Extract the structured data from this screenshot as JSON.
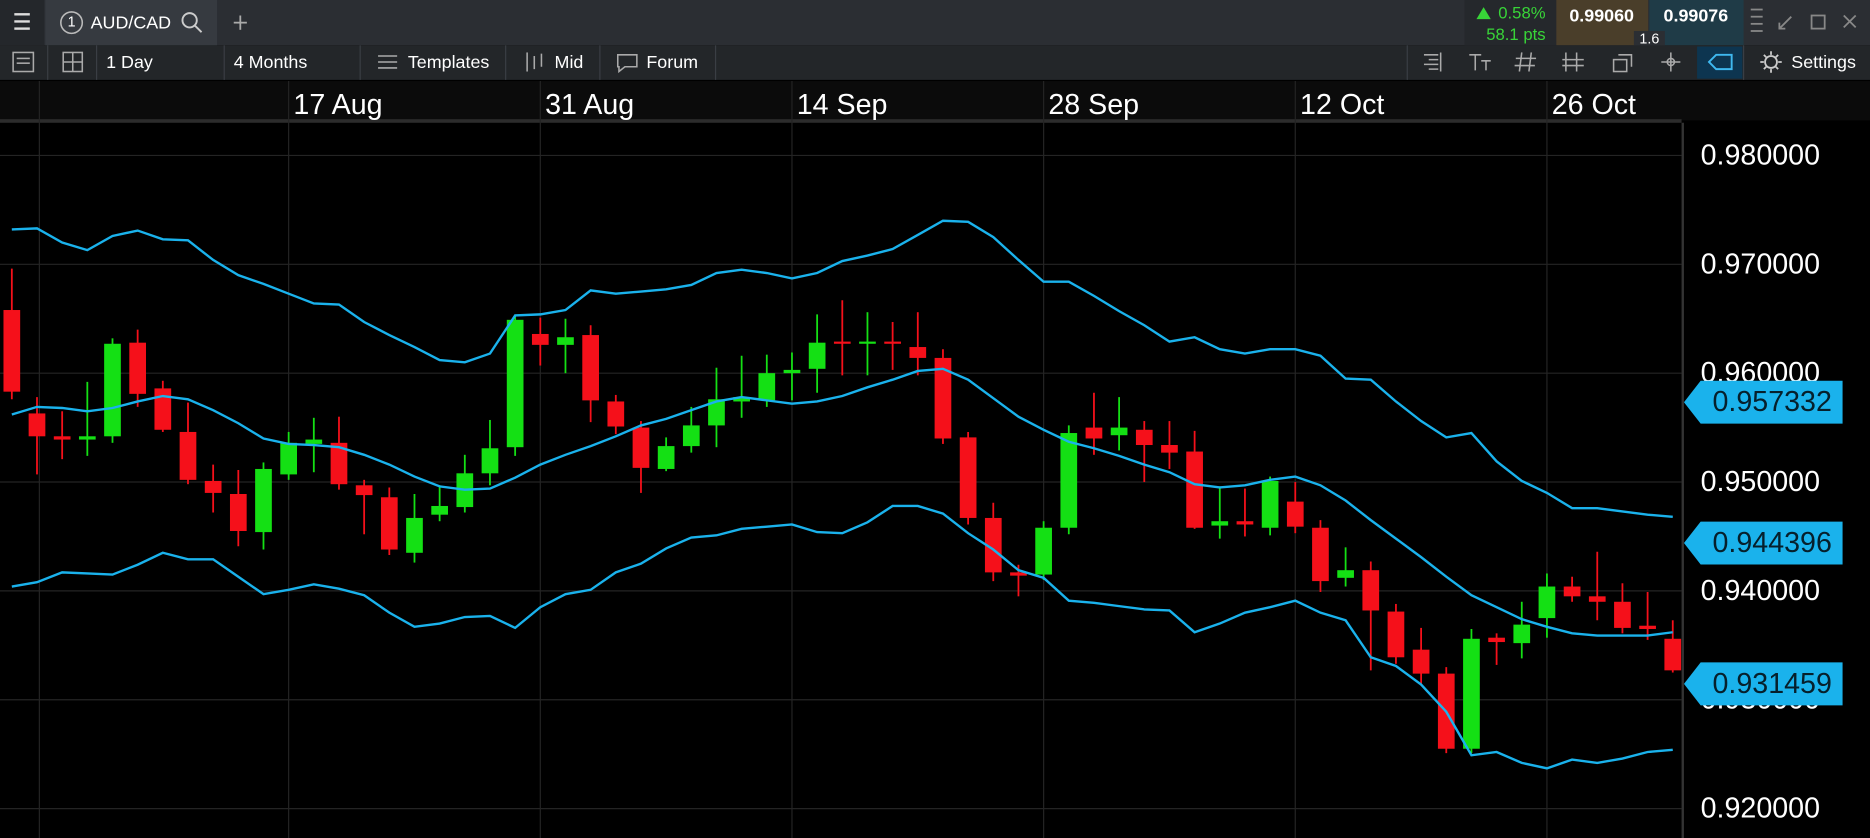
{
  "toolbar": {
    "slot": "1",
    "symbol": "AUD/CAD",
    "change": "0.58%",
    "change_pts": "58.1 pts",
    "bid": "0.99060",
    "ask": "0.99076",
    "spread": "1.6",
    "menu": [
      "1 Day",
      "4 Months",
      "Templates",
      "Mid",
      "Forum"
    ],
    "settings": "Settings"
  },
  "chart_data": {
    "type": "candlestick",
    "up_color": "#14e014",
    "down_color": "#f5101a",
    "xlim": [
      -0.47,
      66.35
    ],
    "xticks": [
      {
        "value": 11,
        "label": "17 Aug"
      },
      {
        "value": 21,
        "label": "31 Aug"
      },
      {
        "value": 31,
        "label": "14 Sep"
      },
      {
        "value": 41,
        "label": "28 Sep"
      },
      {
        "value": 51,
        "label": "12 Oct"
      },
      {
        "value": 61,
        "label": "26 Oct"
      }
    ],
    "ylim": [
      0.9173,
      0.983
    ],
    "yticks": [
      {
        "value": 0.98,
        "label": "0.980000"
      },
      {
        "value": 0.97,
        "label": "0.970000"
      },
      {
        "value": 0.96,
        "label": "0.960000"
      },
      {
        "value": 0.95,
        "label": "0.950000"
      },
      {
        "value": 0.94,
        "label": "0.940000"
      },
      {
        "value": 0.93,
        "label": "0.930000"
      },
      {
        "value": 0.92,
        "label": "0.920000"
      }
    ],
    "grid": true,
    "open": [
      0.9658,
      0.9563,
      0.9542,
      0.9539,
      0.9542,
      0.9628,
      0.9586,
      0.9546,
      0.9501,
      0.9489,
      0.9454,
      0.9507,
      0.9535,
      0.9536,
      0.9497,
      0.9486,
      0.9435,
      0.947,
      0.9477,
      0.9508,
      0.9532,
      0.9636,
      0.9626,
      0.9635,
      0.9574,
      0.955,
      0.9512,
      0.9533,
      0.9552,
      0.9574,
      0.9575,
      0.96,
      0.9604,
      0.9629,
      0.9627,
      0.9629,
      0.9624,
      0.9614,
      0.9541,
      0.9467,
      0.9417,
      0.9415,
      0.9458,
      0.955,
      0.9543,
      0.9548,
      0.9534,
      0.9528,
      0.946,
      0.9464,
      0.9458,
      0.9482,
      0.9458,
      0.9412,
      0.9419,
      0.9381,
      0.9346,
      0.9324,
      0.9255,
      0.9357,
      0.9352,
      0.9375,
      0.9404,
      0.9395,
      0.939,
      0.9368,
      0.9356
    ],
    "high": [
      0.9696,
      0.9578,
      0.9565,
      0.9592,
      0.9632,
      0.964,
      0.9593,
      0.9573,
      0.9516,
      0.9511,
      0.9518,
      0.9546,
      0.9559,
      0.956,
      0.9502,
      0.9495,
      0.9489,
      0.9497,
      0.9525,
      0.9557,
      0.9653,
      0.9651,
      0.965,
      0.9644,
      0.958,
      0.9556,
      0.9541,
      0.9569,
      0.9605,
      0.9616,
      0.9617,
      0.9619,
      0.9654,
      0.9667,
      0.9656,
      0.9647,
      0.9656,
      0.9622,
      0.9546,
      0.9481,
      0.9424,
      0.9464,
      0.9552,
      0.9582,
      0.9578,
      0.9556,
      0.9556,
      0.9547,
      0.9496,
      0.9494,
      0.9505,
      0.95,
      0.9465,
      0.944,
      0.9427,
      0.9388,
      0.9366,
      0.933,
      0.9365,
      0.9361,
      0.939,
      0.9416,
      0.9413,
      0.9436,
      0.9407,
      0.9399,
      0.9373
    ],
    "low": [
      0.9576,
      0.9507,
      0.9521,
      0.9524,
      0.9536,
      0.9569,
      0.9546,
      0.9498,
      0.9472,
      0.9441,
      0.9438,
      0.9502,
      0.9509,
      0.9493,
      0.9452,
      0.9433,
      0.9426,
      0.9464,
      0.9472,
      0.9497,
      0.9524,
      0.9607,
      0.96,
      0.9555,
      0.9544,
      0.949,
      0.951,
      0.9527,
      0.9532,
      0.9559,
      0.9569,
      0.9575,
      0.9582,
      0.9598,
      0.9598,
      0.9603,
      0.9598,
      0.9535,
      0.9461,
      0.9409,
      0.9395,
      0.941,
      0.9452,
      0.9525,
      0.9529,
      0.95,
      0.9512,
      0.9457,
      0.9448,
      0.945,
      0.9451,
      0.9453,
      0.9399,
      0.9404,
      0.9327,
      0.9333,
      0.9315,
      0.9251,
      0.9251,
      0.9332,
      0.9338,
      0.9357,
      0.939,
      0.9373,
      0.9361,
      0.9355,
      0.9325
    ],
    "close": [
      0.9583,
      0.9542,
      0.9539,
      0.9542,
      0.9627,
      0.9581,
      0.9548,
      0.9502,
      0.949,
      0.9455,
      0.9512,
      0.9536,
      0.9539,
      0.9498,
      0.9488,
      0.9438,
      0.9467,
      0.9478,
      0.9508,
      0.9531,
      0.9649,
      0.9626,
      0.9633,
      0.9575,
      0.9551,
      0.9513,
      0.9533,
      0.9552,
      0.9576,
      0.9578,
      0.96,
      0.9603,
      0.9628,
      0.9627,
      0.9629,
      0.9627,
      0.9614,
      0.954,
      0.9467,
      0.9417,
      0.9414,
      0.9458,
      0.9545,
      0.954,
      0.955,
      0.9534,
      0.9527,
      0.9458,
      0.9464,
      0.9461,
      0.9501,
      0.9459,
      0.9409,
      0.9419,
      0.9382,
      0.9339,
      0.9324,
      0.9255,
      0.9356,
      0.9353,
      0.9369,
      0.9404,
      0.9395,
      0.939,
      0.9366,
      0.9365,
      0.9327
    ],
    "series": [
      {
        "color": "#1ab2ec",
        "values": [
          0.9732,
          0.9733,
          0.972,
          0.9713,
          0.9726,
          0.9731,
          0.9723,
          0.9722,
          0.9704,
          0.969,
          0.9682,
          0.9673,
          0.9664,
          0.9663,
          0.9647,
          0.9635,
          0.9624,
          0.9612,
          0.961,
          0.9618,
          0.9653,
          0.9654,
          0.9658,
          0.9676,
          0.9673,
          0.9675,
          0.9677,
          0.9681,
          0.9692,
          0.9695,
          0.9692,
          0.9687,
          0.9692,
          0.9703,
          0.9708,
          0.9714,
          0.9727,
          0.974,
          0.9739,
          0.9725,
          0.9704,
          0.9684,
          0.9684,
          0.9671,
          0.9657,
          0.9644,
          0.9629,
          0.9633,
          0.9622,
          0.9618,
          0.9622,
          0.9622,
          0.9616,
          0.9595,
          0.9594,
          0.9574,
          0.9556,
          0.9541,
          0.9545,
          0.9519,
          0.9501,
          0.949,
          0.9476,
          0.9476,
          0.9473,
          0.947,
          0.9468
        ]
      },
      {
        "color": "#1ab2ec",
        "values": [
          0.9562,
          0.9569,
          0.9568,
          0.9565,
          0.9568,
          0.9574,
          0.9579,
          0.9576,
          0.9566,
          0.9554,
          0.954,
          0.9535,
          0.9534,
          0.9532,
          0.9525,
          0.9516,
          0.9505,
          0.9496,
          0.9493,
          0.9494,
          0.9504,
          0.9516,
          0.9525,
          0.9533,
          0.9542,
          0.9552,
          0.9558,
          0.9566,
          0.9574,
          0.9578,
          0.9575,
          0.9572,
          0.9574,
          0.9579,
          0.9587,
          0.9594,
          0.9602,
          0.9604,
          0.9594,
          0.9577,
          0.956,
          0.9548,
          0.9537,
          0.9531,
          0.9524,
          0.9516,
          0.9509,
          0.9498,
          0.9495,
          0.9497,
          0.9502,
          0.9505,
          0.9497,
          0.9483,
          0.9465,
          0.9448,
          0.9431,
          0.9413,
          0.9396,
          0.9385,
          0.9374,
          0.9367,
          0.9361,
          0.9359,
          0.9359,
          0.9359,
          0.9362
        ]
      },
      {
        "color": "#1ab2ec",
        "values": [
          0.9404,
          0.9408,
          0.9417,
          0.9416,
          0.9415,
          0.9424,
          0.9435,
          0.9429,
          0.9429,
          0.9413,
          0.9397,
          0.9401,
          0.9406,
          0.9402,
          0.9396,
          0.938,
          0.9367,
          0.937,
          0.9376,
          0.9377,
          0.9366,
          0.9385,
          0.9397,
          0.9401,
          0.9417,
          0.9425,
          0.9439,
          0.9449,
          0.9451,
          0.9457,
          0.9459,
          0.9461,
          0.9454,
          0.9453,
          0.9463,
          0.9478,
          0.9478,
          0.9471,
          0.9453,
          0.9438,
          0.9419,
          0.9412,
          0.9391,
          0.9389,
          0.9386,
          0.9383,
          0.9382,
          0.9362,
          0.937,
          0.938,
          0.9385,
          0.9391,
          0.938,
          0.9373,
          0.9339,
          0.9331,
          0.9314,
          0.9289,
          0.9249,
          0.9252,
          0.9242,
          0.9237,
          0.9245,
          0.9242,
          0.9246,
          0.9252,
          0.9254
        ]
      }
    ],
    "price_labels": [
      0.957332,
      0.944396,
      0.931459
    ],
    "price_label_color": "#1ab2ec"
  }
}
